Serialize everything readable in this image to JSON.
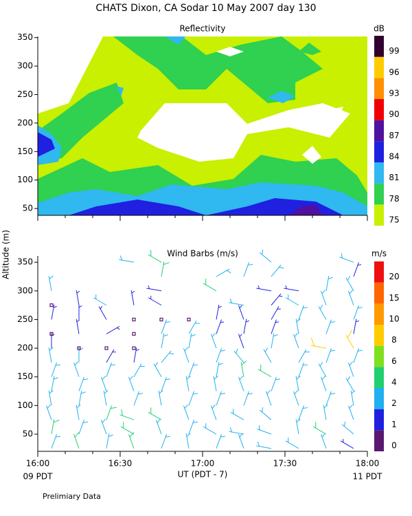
{
  "header": {
    "title": "CHATS Dixon, CA  Sodar  10 May 2007  day 130",
    "ylabel": "Altitude (m)",
    "left_note": "09 PDT",
    "right_note": "11 PDT",
    "footer": "Prelimiary Data"
  },
  "chart_data": [
    {
      "type": "contour",
      "title": "Reflectivity",
      "colorbar_title": "dB",
      "xlim": [
        960,
        1080
      ],
      "xticks": [
        960,
        990,
        1020,
        1050,
        1080
      ],
      "ylim": [
        38,
        352
      ],
      "yticks": [
        50,
        100,
        150,
        200,
        250,
        300,
        350
      ],
      "levels": [
        75,
        78,
        81,
        84,
        87,
        90,
        93,
        96,
        99
      ],
      "colors": [
        "#c8f000",
        "#30d050",
        "#30b8f0",
        "#2020e0",
        "#5010a0",
        "#f00000",
        "#ff9000",
        "#ffcc00",
        "#300030"
      ]
    },
    {
      "type": "barbs",
      "title": "Wind Barbs (m/s)",
      "colorbar_title": "m/s",
      "xlabel": "UT  (PDT - 7)",
      "xlim": [
        960,
        1080
      ],
      "xticks": [
        {
          "value": 960,
          "label": "16:00"
        },
        {
          "value": 990,
          "label": "16:30"
        },
        {
          "value": 1020,
          "label": "17:00"
        },
        {
          "value": 1050,
          "label": "17:30"
        },
        {
          "value": 1080,
          "label": "18:00"
        }
      ],
      "ylim": [
        20,
        361
      ],
      "yticks": [
        50,
        100,
        150,
        200,
        250,
        300,
        350
      ],
      "levels": [
        0,
        1,
        2,
        4,
        6,
        8,
        10,
        15,
        20
      ],
      "colors": [
        "#5a1870",
        "#2020e0",
        "#20b0f0",
        "#20d070",
        "#80e020",
        "#ffcc00",
        "#ff9900",
        "#ff6600",
        "#ee1010"
      ],
      "x": [
        965,
        975,
        985,
        995,
        1005,
        1015,
        1025,
        1035,
        1045,
        1055,
        1065,
        1075
      ],
      "altitudes": [
        25,
        50,
        75,
        100,
        125,
        150,
        175,
        200,
        225,
        250,
        275,
        300,
        325,
        350
      ],
      "speed": [
        [
          3,
          5,
          3,
          3,
          3,
          3,
          2,
          1,
          0.3,
          1,
          0.3,
          3,
          null,
          null
        ],
        [
          4,
          3,
          3,
          3,
          3,
          3,
          2,
          0.3,
          1,
          1,
          1,
          null,
          null,
          null
        ],
        [
          3,
          3,
          4,
          3,
          3,
          3,
          1,
          0.3,
          1,
          1,
          3,
          null,
          null,
          null
        ],
        [
          4,
          4,
          5,
          3,
          3,
          3,
          1,
          0.3,
          0.3,
          0.3,
          1,
          null,
          null,
          3
        ],
        [
          3,
          3,
          5,
          3,
          3,
          3,
          3,
          3,
          3,
          0.3,
          1,
          1,
          5,
          5
        ],
        [
          3,
          3,
          3,
          3,
          3,
          3,
          3,
          3,
          3,
          0.3,
          null,
          null,
          null,
          null
        ],
        [
          3,
          3,
          3,
          3,
          3,
          3,
          3,
          3,
          1,
          1,
          null,
          5,
          3,
          null
        ],
        [
          3,
          3,
          3,
          3,
          3,
          4,
          3,
          1,
          1,
          1,
          3,
          null,
          3,
          null
        ],
        [
          3,
          3,
          3,
          3,
          3,
          5,
          3,
          3,
          1,
          1,
          1,
          1,
          3,
          3
        ],
        [
          3,
          3,
          3,
          3,
          3,
          3,
          3,
          3,
          3,
          3,
          3,
          1,
          null,
          null
        ],
        [
          3,
          4,
          3,
          3,
          3,
          3,
          3,
          9,
          3,
          3,
          3,
          3,
          null,
          null
        ],
        [
          1,
          3,
          3,
          3,
          3,
          3,
          3,
          9,
          1,
          3,
          3,
          3,
          1,
          3
        ]
      ],
      "direction": [
        [
          20,
          10,
          340,
          350,
          10,
          20,
          350,
          0,
          0,
          10,
          0,
          350,
          null,
          null
        ],
        [
          340,
          20,
          350,
          10,
          20,
          340,
          0,
          0,
          350,
          0,
          350,
          null,
          null,
          null
        ],
        [
          10,
          340,
          20,
          350,
          340,
          20,
          30,
          0,
          60,
          330,
          300,
          null,
          null,
          null
        ],
        [
          340,
          300,
          290,
          20,
          340,
          30,
          10,
          0,
          0,
          0,
          350,
          null,
          null,
          280
        ],
        [
          20,
          340,
          300,
          350,
          20,
          330,
          40,
          10,
          20,
          0,
          300,
          280,
          10,
          300
        ],
        [
          350,
          20,
          340,
          20,
          350,
          20,
          340,
          10,
          30,
          0,
          null,
          null,
          null,
          null
        ],
        [
          20,
          300,
          340,
          20,
          350,
          10,
          20,
          340,
          20,
          10,
          null,
          300,
          60,
          null
        ],
        [
          340,
          280,
          300,
          20,
          340,
          350,
          320,
          340,
          10,
          340,
          280,
          null,
          20,
          null
        ],
        [
          280,
          290,
          310,
          340,
          20,
          300,
          330,
          10,
          20,
          30,
          40,
          280,
          40,
          310
        ],
        [
          300,
          350,
          20,
          340,
          350,
          20,
          30,
          340,
          350,
          20,
          300,
          280,
          null,
          null
        ],
        [
          340,
          300,
          350,
          20,
          340,
          330,
          20,
          280,
          20,
          330,
          340,
          10,
          null,
          null
        ],
        [
          300,
          310,
          340,
          350,
          330,
          340,
          20,
          330,
          10,
          20,
          340,
          330,
          20,
          290
        ]
      ]
    }
  ]
}
